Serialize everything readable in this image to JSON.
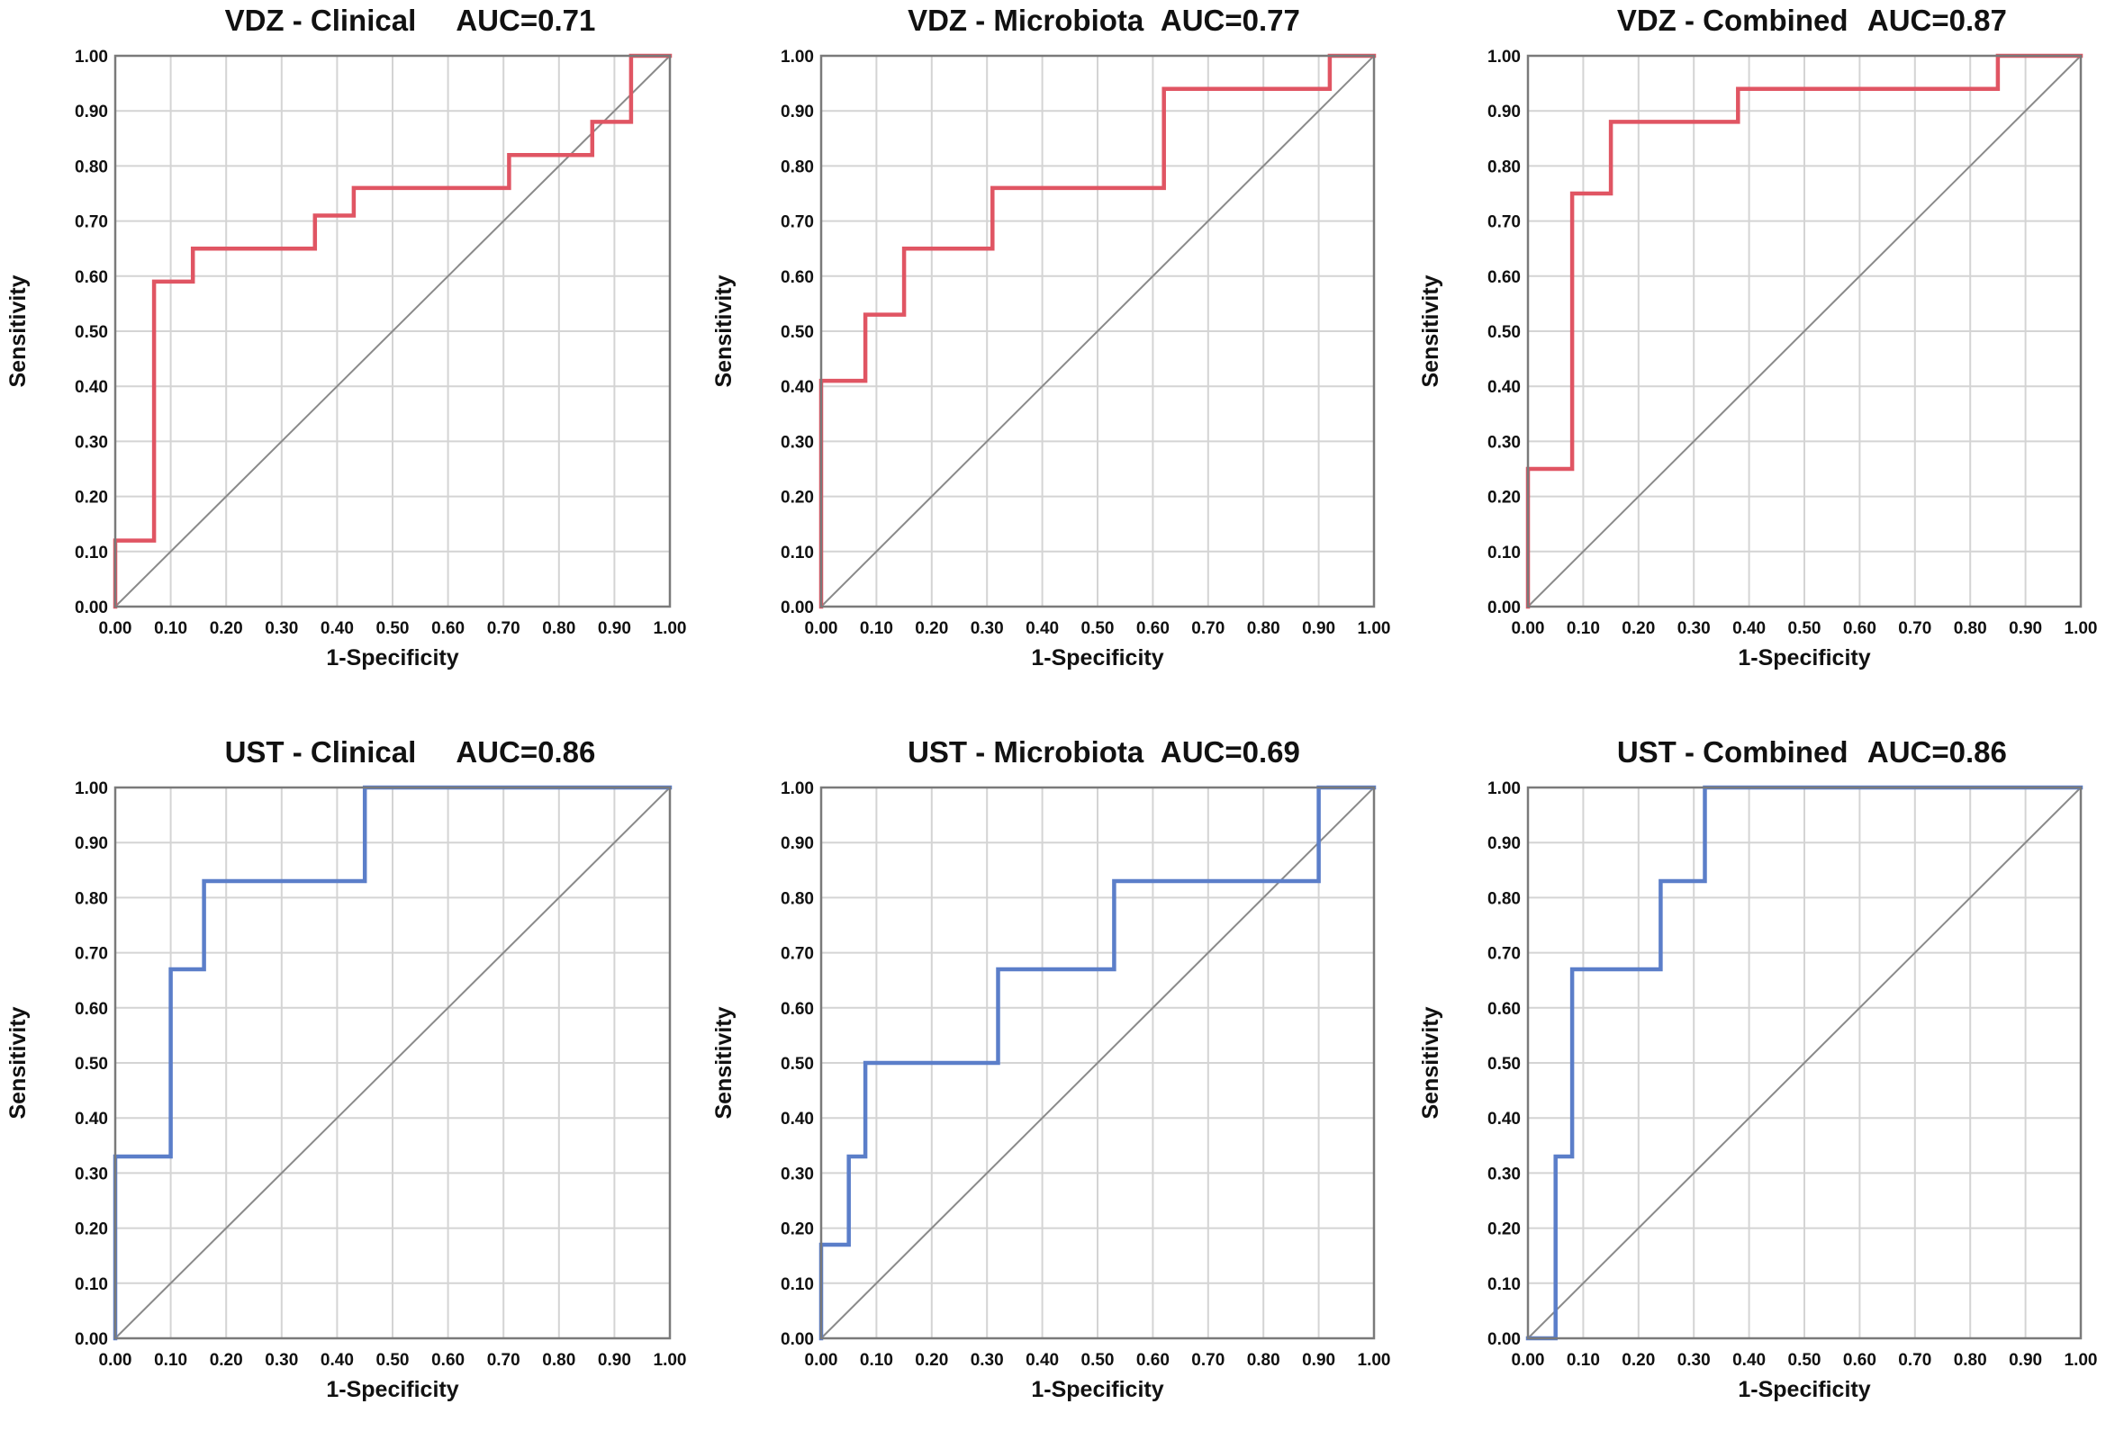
{
  "chart_data": [
    {
      "type": "line",
      "title": "VDZ - Clinical",
      "auc": "AUC=0.71",
      "xlabel": "1-Specificity",
      "ylabel": "Sensitivity",
      "xlim": [
        0,
        1
      ],
      "ylim": [
        0,
        1
      ],
      "xticks": [
        "0.00",
        "0.10",
        "0.20",
        "0.30",
        "0.40",
        "0.50",
        "0.60",
        "0.70",
        "0.80",
        "0.90",
        "1.00"
      ],
      "yticks": [
        "0.00",
        "0.10",
        "0.20",
        "0.30",
        "0.40",
        "0.50",
        "0.60",
        "0.70",
        "0.80",
        "0.90",
        "1.00"
      ],
      "color": "#e05563",
      "grid": true,
      "series": [
        {
          "x": [
            0,
            0,
            0.07,
            0.07,
            0.14,
            0.14,
            0.36,
            0.36,
            0.43,
            0.43,
            0.71,
            0.71,
            0.86,
            0.86,
            0.93,
            0.93,
            1
          ],
          "y": [
            0,
            0.12,
            0.12,
            0.59,
            0.59,
            0.65,
            0.65,
            0.71,
            0.71,
            0.76,
            0.76,
            0.82,
            0.82,
            0.88,
            0.88,
            1,
            1
          ]
        }
      ]
    },
    {
      "type": "line",
      "title": "VDZ - Microbiota",
      "auc": "AUC=0.77",
      "xlabel": "1-Specificity",
      "ylabel": "Sensitivity",
      "xlim": [
        0,
        1
      ],
      "ylim": [
        0,
        1
      ],
      "xticks": [
        "0.00",
        "0.10",
        "0.20",
        "0.30",
        "0.40",
        "0.50",
        "0.60",
        "0.70",
        "0.80",
        "0.90",
        "1.00"
      ],
      "yticks": [
        "0.00",
        "0.10",
        "0.20",
        "0.30",
        "0.40",
        "0.50",
        "0.60",
        "0.70",
        "0.80",
        "0.90",
        "1.00"
      ],
      "color": "#e05563",
      "grid": true,
      "series": [
        {
          "x": [
            0,
            0,
            0.08,
            0.08,
            0.15,
            0.15,
            0.31,
            0.31,
            0.62,
            0.62,
            0.92,
            0.92,
            1
          ],
          "y": [
            0,
            0.41,
            0.41,
            0.53,
            0.53,
            0.65,
            0.65,
            0.76,
            0.76,
            0.94,
            0.94,
            1,
            1
          ]
        }
      ]
    },
    {
      "type": "line",
      "title": "VDZ - Combined",
      "auc": "AUC=0.87",
      "xlabel": "1-Specificity",
      "ylabel": "Sensitivity",
      "xlim": [
        0,
        1
      ],
      "ylim": [
        0,
        1
      ],
      "xticks": [
        "0.00",
        "0.10",
        "0.20",
        "0.30",
        "0.40",
        "0.50",
        "0.60",
        "0.70",
        "0.80",
        "0.90",
        "1.00"
      ],
      "yticks": [
        "0.00",
        "0.10",
        "0.20",
        "0.30",
        "0.40",
        "0.50",
        "0.60",
        "0.70",
        "0.80",
        "0.90",
        "1.00"
      ],
      "color": "#e05563",
      "grid": true,
      "series": [
        {
          "x": [
            0,
            0,
            0.08,
            0.08,
            0.15,
            0.15,
            0.38,
            0.38,
            0.85,
            0.85,
            1
          ],
          "y": [
            0,
            0.25,
            0.25,
            0.75,
            0.75,
            0.88,
            0.88,
            0.94,
            0.94,
            1,
            1
          ]
        }
      ]
    },
    {
      "type": "line",
      "title": "UST - Clinical",
      "auc": "AUC=0.86",
      "xlabel": "1-Specificity",
      "ylabel": "Sensitivity",
      "xlim": [
        0,
        1
      ],
      "ylim": [
        0,
        1
      ],
      "xticks": [
        "0.00",
        "0.10",
        "0.20",
        "0.30",
        "0.40",
        "0.50",
        "0.60",
        "0.70",
        "0.80",
        "0.90",
        "1.00"
      ],
      "yticks": [
        "0.00",
        "0.10",
        "0.20",
        "0.30",
        "0.40",
        "0.50",
        "0.60",
        "0.70",
        "0.80",
        "0.90",
        "1.00"
      ],
      "color": "#5b7ec9",
      "grid": true,
      "series": [
        {
          "x": [
            0,
            0,
            0.1,
            0.1,
            0.16,
            0.16,
            0.45,
            0.45,
            1
          ],
          "y": [
            0,
            0.33,
            0.33,
            0.67,
            0.67,
            0.83,
            0.83,
            1,
            1
          ]
        }
      ]
    },
    {
      "type": "line",
      "title": "UST - Microbiota",
      "auc": "AUC=0.69",
      "xlabel": "1-Specificity",
      "ylabel": "Sensitivity",
      "xlim": [
        0,
        1
      ],
      "ylim": [
        0,
        1
      ],
      "xticks": [
        "0.00",
        "0.10",
        "0.20",
        "0.30",
        "0.40",
        "0.50",
        "0.60",
        "0.70",
        "0.80",
        "0.90",
        "1.00"
      ],
      "yticks": [
        "0.00",
        "0.10",
        "0.20",
        "0.30",
        "0.40",
        "0.50",
        "0.60",
        "0.70",
        "0.80",
        "0.90",
        "1.00"
      ],
      "color": "#5b7ec9",
      "grid": true,
      "series": [
        {
          "x": [
            0,
            0,
            0.05,
            0.05,
            0.08,
            0.08,
            0.32,
            0.32,
            0.53,
            0.53,
            0.9,
            0.9,
            1
          ],
          "y": [
            0,
            0.17,
            0.17,
            0.33,
            0.33,
            0.5,
            0.5,
            0.67,
            0.67,
            0.83,
            0.83,
            1,
            1
          ]
        }
      ]
    },
    {
      "type": "line",
      "title": "UST - Combined",
      "auc": "AUC=0.86",
      "xlabel": "1-Specificity",
      "ylabel": "Sensitivity",
      "xlim": [
        0,
        1
      ],
      "ylim": [
        0,
        1
      ],
      "xticks": [
        "0.00",
        "0.10",
        "0.20",
        "0.30",
        "0.40",
        "0.50",
        "0.60",
        "0.70",
        "0.80",
        "0.90",
        "1.00"
      ],
      "yticks": [
        "0.00",
        "0.10",
        "0.20",
        "0.30",
        "0.40",
        "0.50",
        "0.60",
        "0.70",
        "0.80",
        "0.90",
        "1.00"
      ],
      "color": "#5b7ec9",
      "grid": true,
      "series": [
        {
          "x": [
            0,
            0.05,
            0.05,
            0.08,
            0.08,
            0.24,
            0.24,
            0.32,
            0.32,
            1
          ],
          "y": [
            0,
            0,
            0.33,
            0.33,
            0.67,
            0.67,
            0.83,
            0.83,
            1,
            1
          ]
        }
      ]
    }
  ]
}
